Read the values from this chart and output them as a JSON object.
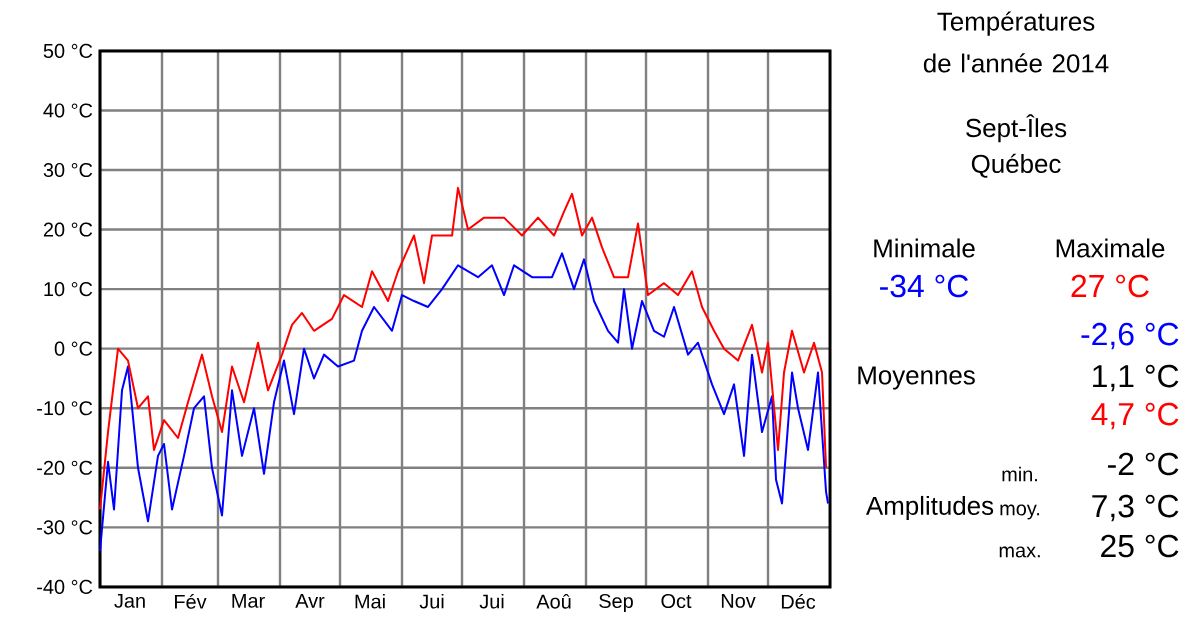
{
  "chart_data": {
    "type": "line",
    "title": "Températures de l'année 2014",
    "subtitle": "Sept-Îles Québec",
    "xlim": [
      "2014-01-01",
      "2015-01-01"
    ],
    "xticks": [
      {
        "value": "2014-01-01",
        "label": null
      },
      {
        "value": "2014-01-16",
        "label": "Jan"
      },
      {
        "value": "2014-02-01",
        "label": null
      },
      {
        "value": "2014-02-15",
        "label": "Fév"
      },
      {
        "value": "2014-03-01",
        "label": null
      },
      {
        "value": "2014-03-16",
        "label": "Mar"
      },
      {
        "value": "2014-04-01",
        "label": null
      },
      {
        "value": "2014-04-16",
        "label": "Avr"
      },
      {
        "value": "2014-05-01",
        "label": null
      },
      {
        "value": "2014-05-16",
        "label": "Mai"
      },
      {
        "value": "2014-06-01",
        "label": null
      },
      {
        "value": "2014-06-16",
        "label": "Jui"
      },
      {
        "value": "2014-07-01",
        "label": null
      },
      {
        "value": "2014-07-16",
        "label": "Jui"
      },
      {
        "value": "2014-08-01",
        "label": null
      },
      {
        "value": "2014-08-16",
        "label": "Aoû"
      },
      {
        "value": "2014-09-01",
        "label": null
      },
      {
        "value": "2014-09-16",
        "label": "Sep"
      },
      {
        "value": "2014-10-01",
        "label": null
      },
      {
        "value": "2014-10-16",
        "label": "Oct"
      },
      {
        "value": "2014-11-01",
        "label": null
      },
      {
        "value": "2014-11-16",
        "label": "Nov"
      },
      {
        "value": "2014-12-01",
        "label": null
      },
      {
        "value": "2014-12-16",
        "label": "Déc"
      }
    ],
    "ylim": [
      -40,
      50
    ],
    "yticks": [
      {
        "value": -40,
        "label": "-40 °C"
      },
      {
        "value": -30,
        "label": "-30 °C"
      },
      {
        "value": -20,
        "label": "-20 °C"
      },
      {
        "value": -10,
        "label": "-10 °C"
      },
      {
        "value": 0,
        "label": "0 °C"
      },
      {
        "value": 10,
        "label": "10 °C"
      },
      {
        "value": 20,
        "label": "20 °C"
      },
      {
        "value": 30,
        "label": "30 °C"
      },
      {
        "value": 40,
        "label": "40 °C"
      },
      {
        "value": 50,
        "label": "50 °C"
      }
    ],
    "grid": true,
    "series": [
      {
        "color": "#0000ff",
        "x": [
          "2014-01-01",
          "2014-01-05",
          "2014-01-08",
          "2014-01-12",
          "2014-01-15",
          "2014-01-20",
          "2014-01-25",
          "2014-01-30",
          "2014-02-02",
          "2014-02-06",
          "2014-02-12",
          "2014-02-17",
          "2014-02-22",
          "2014-02-26",
          "2014-03-03",
          "2014-03-08",
          "2014-03-13",
          "2014-03-19",
          "2014-03-24",
          "2014-03-29",
          "2014-04-03",
          "2014-04-08",
          "2014-04-13",
          "2014-04-18",
          "2014-04-23",
          "2014-04-30",
          "2014-05-08",
          "2014-05-12",
          "2014-05-18",
          "2014-05-27",
          "2014-06-01",
          "2014-06-07",
          "2014-06-14",
          "2014-06-21",
          "2014-06-29",
          "2014-07-09",
          "2014-07-16",
          "2014-07-22",
          "2014-07-27",
          "2014-08-05",
          "2014-08-15",
          "2014-08-20",
          "2014-08-26",
          "2014-08-31",
          "2014-09-05",
          "2014-09-12",
          "2014-09-17",
          "2014-09-20",
          "2014-09-24",
          "2014-09-29",
          "2014-10-05",
          "2014-10-10",
          "2014-10-15",
          "2014-10-22",
          "2014-10-27",
          "2014-11-03",
          "2014-11-09",
          "2014-11-14",
          "2014-11-19",
          "2014-11-23",
          "2014-11-28",
          "2014-12-03",
          "2014-12-05",
          "2014-12-08",
          "2014-12-13",
          "2014-12-16",
          "2014-12-21",
          "2014-12-26",
          "2014-12-30",
          "2014-12-31"
        ],
        "values": [
          -34,
          -19,
          -27,
          -7,
          -3,
          -20,
          -29,
          -18,
          -16,
          -27,
          -18,
          -10,
          -8,
          -20,
          -28,
          -7,
          -18,
          -10,
          -21,
          -9,
          -2,
          -11,
          0,
          -5,
          -1,
          -3,
          -2,
          3,
          7,
          3,
          9,
          8,
          7,
          10,
          14,
          12,
          14,
          9,
          14,
          12,
          12,
          16,
          10,
          15,
          8,
          3,
          1,
          10,
          0,
          8,
          3,
          2,
          7,
          -1,
          1,
          -6,
          -11,
          -6,
          -18,
          -1,
          -14,
          -8,
          -22,
          -26,
          -4,
          -10,
          -17,
          -4,
          -24,
          -26
        ]
      },
      {
        "color": "#ff0000",
        "x": [
          "2014-01-01",
          "2014-01-05",
          "2014-01-10",
          "2014-01-15",
          "2014-01-20",
          "2014-01-25",
          "2014-01-28",
          "2014-02-02",
          "2014-02-09",
          "2014-02-14",
          "2014-02-21",
          "2014-02-26",
          "2014-03-03",
          "2014-03-08",
          "2014-03-14",
          "2014-03-21",
          "2014-03-26",
          "2014-04-02",
          "2014-04-07",
          "2014-04-12",
          "2014-04-18",
          "2014-04-27",
          "2014-05-03",
          "2014-05-12",
          "2014-05-17",
          "2014-05-25",
          "2014-05-30",
          "2014-06-07",
          "2014-06-12",
          "2014-06-16",
          "2014-06-26",
          "2014-06-29",
          "2014-07-04",
          "2014-07-12",
          "2014-07-22",
          "2014-07-31",
          "2014-08-08",
          "2014-08-16",
          "2014-08-21",
          "2014-08-25",
          "2014-08-30",
          "2014-09-04",
          "2014-09-09",
          "2014-09-15",
          "2014-09-22",
          "2014-09-27",
          "2014-10-02",
          "2014-10-10",
          "2014-10-17",
          "2014-10-24",
          "2014-10-29",
          "2014-11-04",
          "2014-11-09",
          "2014-11-16",
          "2014-11-23",
          "2014-11-28",
          "2014-12-01",
          "2014-12-06",
          "2014-12-09",
          "2014-12-13",
          "2014-12-19",
          "2014-12-24",
          "2014-12-28",
          "2014-12-30"
        ],
        "values": [
          -27,
          -14,
          0,
          -2,
          -10,
          -8,
          -17,
          -12,
          -15,
          -9,
          -1,
          -8,
          -14,
          -3,
          -9,
          1,
          -7,
          -1,
          4,
          6,
          3,
          5,
          9,
          7,
          13,
          8,
          13,
          19,
          11,
          19,
          19,
          27,
          20,
          22,
          22,
          19,
          22,
          19,
          23,
          26,
          19,
          22,
          17,
          12,
          12,
          21,
          9,
          11,
          9,
          13,
          7,
          3,
          0,
          -2,
          4,
          -4,
          1,
          -17,
          -4,
          3,
          -4,
          1,
          -4,
          -20
        ]
      }
    ],
    "annotations": [
      "Minimale",
      "-34 °C",
      "Maximale",
      "27 °C",
      "-2,6 °C",
      "Moyennes",
      "1,1 °C",
      "4,7 °C",
      "min.",
      "-2 °C",
      "Amplitudes",
      "moy.",
      "7,3 °C",
      "max.",
      "25 °C"
    ]
  }
}
